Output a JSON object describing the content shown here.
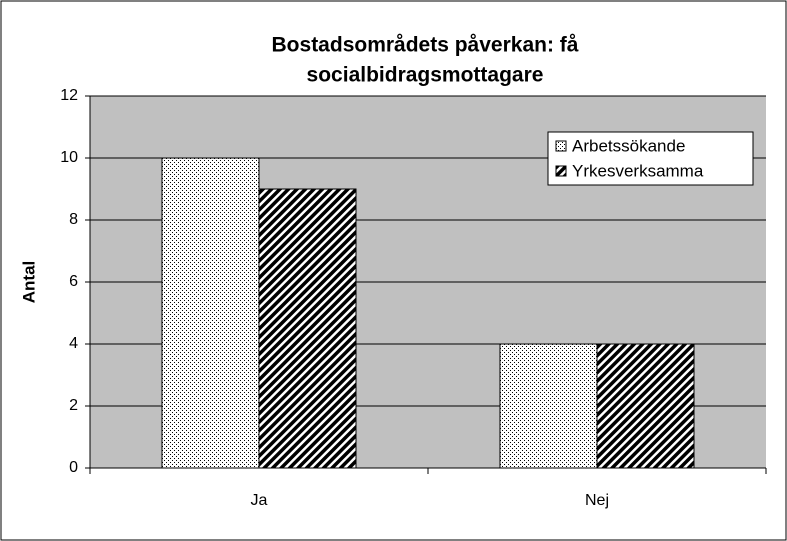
{
  "chart_data": {
    "type": "bar",
    "title": [
      "Bostadsområdets påverkan: få",
      "socialbidragsmottagare"
    ],
    "y_label": "Antal",
    "categories": [
      "Ja",
      "Nej"
    ],
    "series": [
      {
        "name": "Arbetssökande",
        "color": "#ffffff",
        "pattern": "dots",
        "values": [
          10,
          4
        ]
      },
      {
        "name": "Yrkesverksamma",
        "color": "#ffffff",
        "pattern": "stripes",
        "values": [
          9,
          4
        ]
      }
    ],
    "ylim": [
      0,
      12
    ],
    "yticks": [
      0,
      2,
      4,
      6,
      8,
      10,
      12
    ],
    "grid": true,
    "legend": "top-right"
  }
}
